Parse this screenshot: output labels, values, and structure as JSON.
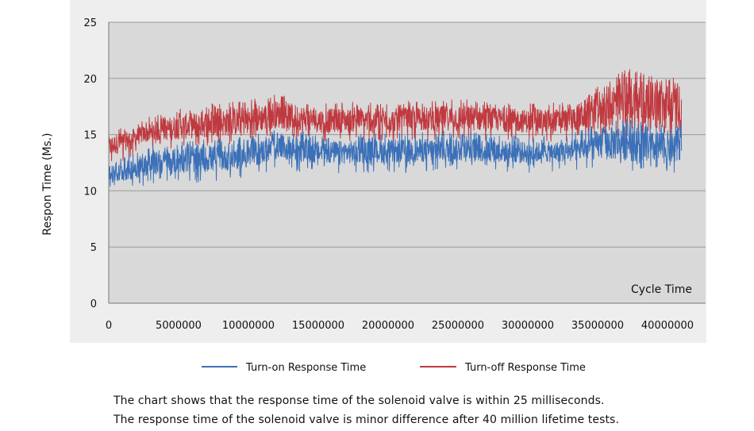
{
  "chart_data": {
    "type": "line",
    "title": "",
    "ylabel": "Respon Time (Ms.)",
    "xlabel": "Cycle Time",
    "xlim": [
      0,
      42000000
    ],
    "ylim": [
      0,
      25
    ],
    "x_ticks": [
      0,
      5000000,
      10000000,
      15000000,
      20000000,
      25000000,
      30000000,
      35000000,
      40000000
    ],
    "x_tick_labels": [
      "0",
      "5000000",
      "10000000",
      "15000000",
      "20000000",
      "25000000",
      "30000000",
      "35000000",
      "40000000"
    ],
    "y_ticks": [
      0,
      5,
      10,
      15,
      20,
      25
    ],
    "y_tick_labels": [
      "0",
      "5",
      "10",
      "15",
      "20",
      "25"
    ],
    "grid": true,
    "legend_position": "bottom",
    "plot_background": "#d9d9d9",
    "series": [
      {
        "name": "Turn-on Response Time",
        "color": "#3b70b8",
        "x": [
          0,
          2500000,
          5000000,
          7500000,
          10000000,
          12000000,
          15000000,
          20000000,
          25000000,
          30000000,
          33000000,
          35000000,
          37000000,
          39000000,
          41000000
        ],
        "low": [
          10.5,
          11.3,
          11.6,
          11.7,
          12.0,
          12.8,
          12.4,
          12.5,
          12.6,
          12.5,
          12.6,
          12.8,
          12.7,
          12.5,
          12.3
        ],
        "high": [
          12.0,
          13.3,
          13.8,
          14.0,
          14.2,
          15.0,
          14.4,
          14.5,
          14.8,
          14.3,
          14.4,
          15.4,
          16.0,
          15.2,
          15.5
        ]
      },
      {
        "name": "Turn-off Response Time",
        "color": "#c0393f",
        "x": [
          0,
          2500000,
          5000000,
          7500000,
          10000000,
          12000000,
          15000000,
          20000000,
          25000000,
          30000000,
          33000000,
          35000000,
          37000000,
          39000000,
          41000000
        ],
        "low": [
          13.0,
          14.3,
          14.6,
          14.8,
          15.0,
          15.6,
          15.2,
          15.3,
          15.4,
          15.2,
          15.3,
          15.6,
          15.8,
          15.5,
          15.2
        ],
        "high": [
          14.8,
          15.8,
          16.8,
          17.2,
          17.5,
          18.0,
          17.3,
          17.3,
          17.6,
          17.2,
          17.3,
          18.8,
          20.4,
          19.6,
          19.4
        ]
      }
    ]
  },
  "caption": {
    "line1": "The chart shows that the response time of the solenoid valve is within 25 milliseconds.",
    "line2": "The response time of the solenoid valve is minor difference after 40 million lifetime tests."
  }
}
